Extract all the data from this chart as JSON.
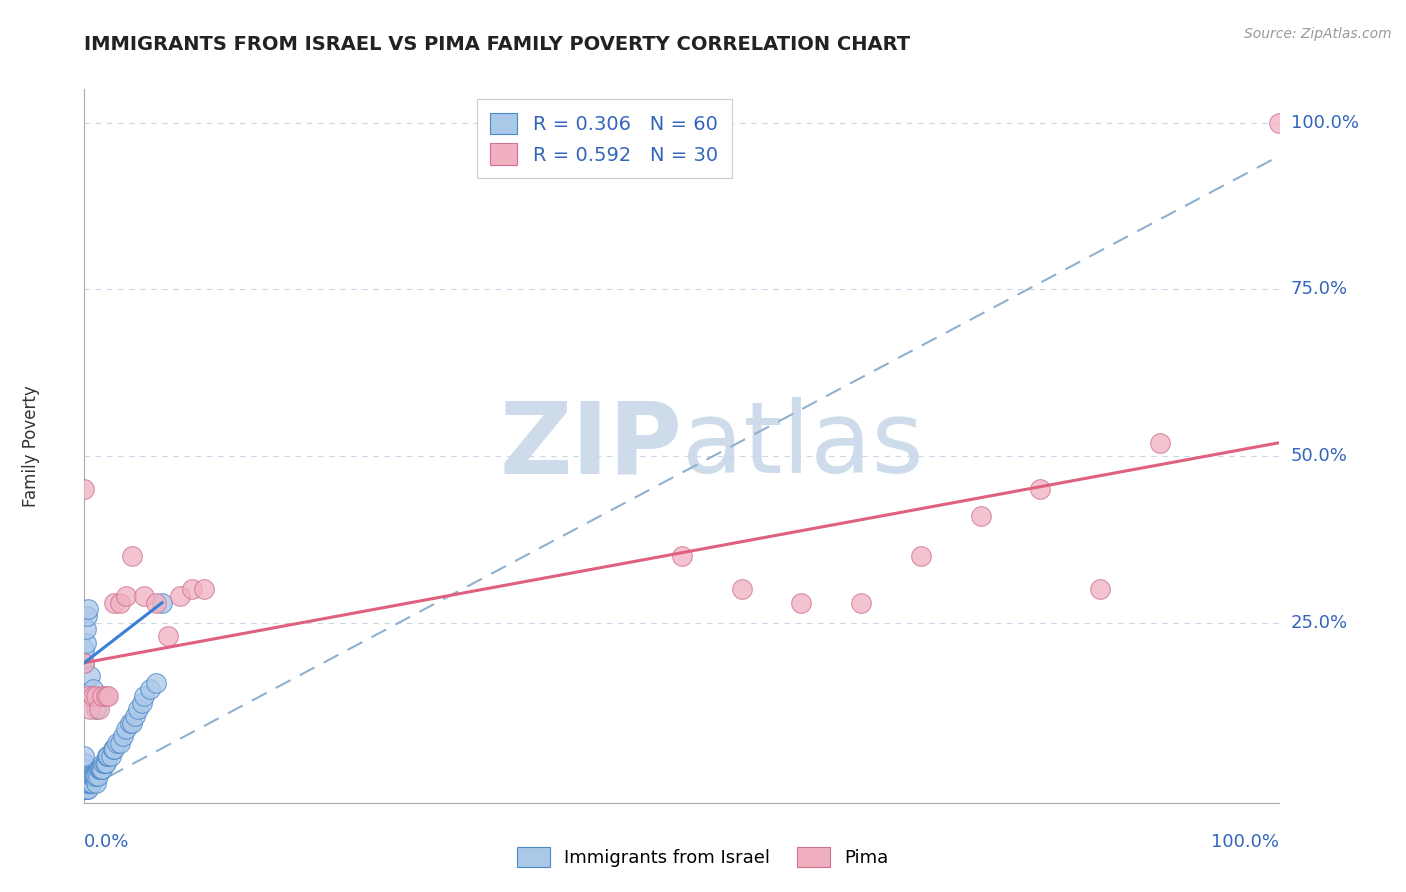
{
  "title": "IMMIGRANTS FROM ISRAEL VS PIMA FAMILY POVERTY CORRELATION CHART",
  "source_text": "Source: ZipAtlas.com",
  "ylabel": "Family Poverty",
  "watermark": "ZIP​atlas",
  "xlim": [
    0.0,
    1.0
  ],
  "ylim": [
    -0.02,
    1.05
  ],
  "ytick_labels": [
    "25.0%",
    "50.0%",
    "75.0%",
    "100.0%"
  ],
  "ytick_values": [
    0.25,
    0.5,
    0.75,
    1.0
  ],
  "legend_items": [
    {
      "label": "R = 0.306   N = 60",
      "color": "#a8c8f0"
    },
    {
      "label": "R = 0.592   N = 30",
      "color": "#f4a0b0"
    }
  ],
  "blue_scatter_x": [
    0.0,
    0.0,
    0.0,
    0.0,
    0.0,
    0.0,
    0.0,
    0.0,
    0.0,
    0.0,
    0.002,
    0.002,
    0.003,
    0.003,
    0.004,
    0.004,
    0.005,
    0.005,
    0.006,
    0.006,
    0.007,
    0.008,
    0.009,
    0.01,
    0.01,
    0.011,
    0.012,
    0.013,
    0.014,
    0.015,
    0.016,
    0.017,
    0.018,
    0.019,
    0.02,
    0.022,
    0.024,
    0.025,
    0.027,
    0.03,
    0.032,
    0.035,
    0.038,
    0.04,
    0.042,
    0.045,
    0.048,
    0.05,
    0.055,
    0.06,
    0.0,
    0.0,
    0.001,
    0.001,
    0.002,
    0.003,
    0.005,
    0.007,
    0.01,
    0.065
  ],
  "blue_scatter_y": [
    0.0,
    0.0,
    0.0,
    0.01,
    0.01,
    0.02,
    0.02,
    0.03,
    0.04,
    0.05,
    0.0,
    0.01,
    0.0,
    0.01,
    0.01,
    0.02,
    0.01,
    0.02,
    0.01,
    0.02,
    0.02,
    0.02,
    0.02,
    0.01,
    0.02,
    0.02,
    0.03,
    0.03,
    0.03,
    0.03,
    0.04,
    0.04,
    0.04,
    0.05,
    0.05,
    0.05,
    0.06,
    0.06,
    0.07,
    0.07,
    0.08,
    0.09,
    0.1,
    0.1,
    0.11,
    0.12,
    0.13,
    0.14,
    0.15,
    0.16,
    0.19,
    0.21,
    0.22,
    0.24,
    0.26,
    0.27,
    0.17,
    0.15,
    0.12,
    0.28
  ],
  "pink_scatter_x": [
    0.0,
    0.0,
    0.003,
    0.005,
    0.007,
    0.01,
    0.012,
    0.015,
    0.018,
    0.02,
    0.025,
    0.03,
    0.035,
    0.04,
    0.05,
    0.06,
    0.07,
    0.08,
    0.09,
    0.1,
    0.5,
    0.55,
    0.6,
    0.65,
    0.7,
    0.75,
    0.8,
    0.85,
    0.9,
    1.0
  ],
  "pink_scatter_y": [
    0.45,
    0.19,
    0.14,
    0.12,
    0.14,
    0.14,
    0.12,
    0.14,
    0.14,
    0.14,
    0.28,
    0.28,
    0.29,
    0.35,
    0.29,
    0.28,
    0.23,
    0.29,
    0.3,
    0.3,
    0.35,
    0.3,
    0.28,
    0.28,
    0.35,
    0.41,
    0.45,
    0.3,
    0.52,
    1.0
  ],
  "blue_trend_x": [
    0.0,
    0.065
  ],
  "blue_trend_y": [
    0.19,
    0.28
  ],
  "dashed_trend_x": [
    0.0,
    1.0
  ],
  "dashed_trend_y": [
    0.0,
    0.95
  ],
  "pink_trend_x": [
    0.0,
    1.0
  ],
  "pink_trend_y": [
    0.19,
    0.52
  ],
  "blue_line_color": "#3a7fd5",
  "pink_line_color": "#e06080",
  "dashed_line_color": "#90b0d0",
  "blue_marker_facecolor": "#aac8e8",
  "blue_marker_edgecolor": "#4a88c8",
  "pink_marker_facecolor": "#f0b0c0",
  "pink_marker_edgecolor": "#d07090",
  "title_color": "#222222",
  "axis_label_color": "#3366bb",
  "background_color": "#ffffff",
  "grid_color": "#c8d8e8",
  "watermark_color": "#c8d8e8",
  "source_color": "#999999"
}
